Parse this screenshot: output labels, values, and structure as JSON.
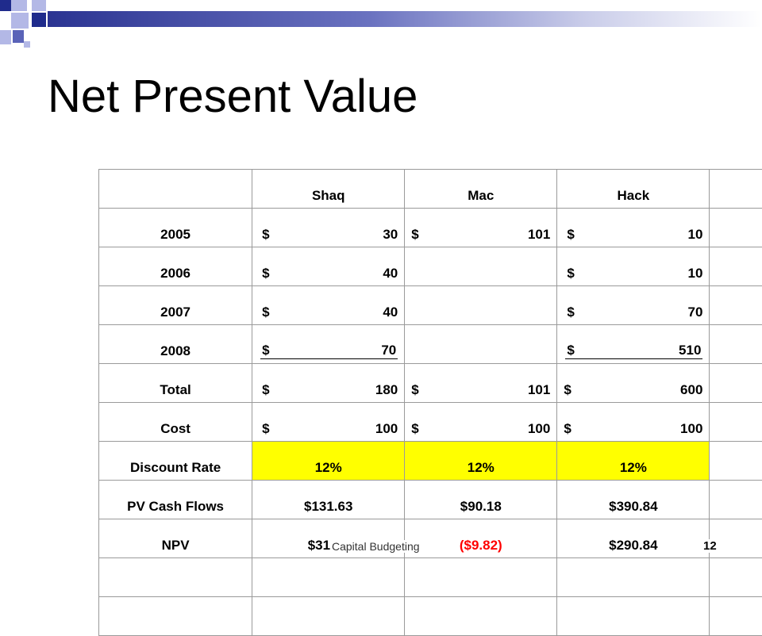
{
  "slide": {
    "title": "Net Present Value",
    "footer": "Capital Budgeting",
    "page_number": "12"
  },
  "table": {
    "headers": [
      "Shaq",
      "Mac",
      "Hack"
    ],
    "rows": [
      {
        "label": "2005",
        "shaq": [
          "$",
          "30"
        ],
        "mac": [
          "$",
          "101"
        ],
        "hack": [
          "$",
          "10"
        ]
      },
      {
        "label": "2006",
        "shaq": [
          "$",
          "40"
        ],
        "mac": [
          "",
          ""
        ],
        "hack": [
          "$",
          "10"
        ]
      },
      {
        "label": "2007",
        "shaq": [
          "$",
          "40"
        ],
        "mac": [
          "",
          ""
        ],
        "hack": [
          "$",
          "70"
        ]
      },
      {
        "label": "2008",
        "shaq": [
          "$",
          "70"
        ],
        "mac": [
          "",
          ""
        ],
        "hack": [
          "$",
          "510"
        ]
      },
      {
        "label": "Total",
        "shaq": [
          "$",
          "180"
        ],
        "mac": [
          "$",
          "101"
        ],
        "hack": [
          "$",
          "600"
        ]
      },
      {
        "label": "Cost",
        "shaq": [
          "$",
          "100"
        ],
        "mac": [
          "$",
          "100"
        ],
        "hack": [
          "$",
          "100"
        ]
      }
    ],
    "discount_rate": {
      "label": "Discount Rate",
      "shaq": "12%",
      "mac": "12%",
      "hack": "12%"
    },
    "pv_cash_flows": {
      "label": "PV Cash Flows",
      "shaq": "$131.63",
      "mac": "$90.18",
      "hack": "$390.84"
    },
    "npv": {
      "label": "NPV",
      "shaq": "$31.63",
      "mac": "($9.82)",
      "hack": "$290.84"
    }
  },
  "colors": {
    "highlight": "#ffff00",
    "negative": "#ff0000",
    "accent_dark": "#1f2b8c",
    "accent_light": "#b3b8e6"
  }
}
